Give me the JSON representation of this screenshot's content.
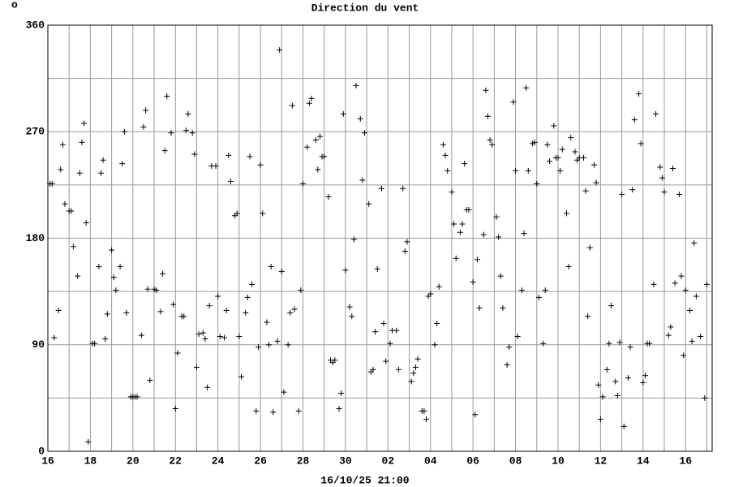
{
  "chart_data": {
    "type": "scatter",
    "corner_mark": "o",
    "title": "Direction du vent",
    "xlabel": "16/10/25 21:00",
    "marker": "+",
    "color": "#000000",
    "grid": true,
    "xlim": [
      0,
      31.25
    ],
    "ylim": [
      0,
      360
    ],
    "yticks": [
      0,
      90,
      180,
      270,
      360
    ],
    "yminorticks": [
      45,
      135,
      225,
      315
    ],
    "xticks": [
      {
        "value": 0,
        "label": "16"
      },
      {
        "value": 2,
        "label": "18"
      },
      {
        "value": 4,
        "label": "20"
      },
      {
        "value": 6,
        "label": "22"
      },
      {
        "value": 8,
        "label": "24"
      },
      {
        "value": 10,
        "label": "26"
      },
      {
        "value": 12,
        "label": "28"
      },
      {
        "value": 14,
        "label": "30"
      },
      {
        "value": 16,
        "label": "02"
      },
      {
        "value": 18,
        "label": "04"
      },
      {
        "value": 20,
        "label": "06"
      },
      {
        "value": 22,
        "label": "08"
      },
      {
        "value": 24,
        "label": "10"
      },
      {
        "value": 26,
        "label": "12"
      },
      {
        "value": 28,
        "label": "14"
      },
      {
        "value": 30,
        "label": "16"
      }
    ],
    "xminorticks": [
      1,
      3,
      5,
      7,
      9,
      11,
      13,
      15,
      17,
      19,
      21,
      23,
      25,
      27,
      29,
      31
    ],
    "x": [
      0.1,
      0.2,
      0.3,
      0.5,
      0.6,
      0.7,
      0.8,
      1.0,
      1.1,
      1.2,
      1.4,
      1.5,
      1.6,
      1.7,
      1.8,
      1.9,
      2.1,
      2.2,
      2.4,
      2.5,
      2.6,
      2.7,
      2.8,
      3.0,
      3.1,
      3.2,
      3.4,
      3.5,
      3.6,
      3.7,
      3.9,
      4.0,
      4.1,
      4.2,
      4.4,
      4.5,
      4.6,
      4.7,
      4.8,
      5.0,
      5.1,
      5.3,
      5.4,
      5.5,
      5.6,
      5.8,
      5.9,
      6.0,
      6.1,
      6.3,
      6.4,
      6.5,
      6.6,
      6.8,
      6.9,
      7.0,
      7.1,
      7.3,
      7.4,
      7.5,
      7.6,
      7.7,
      7.9,
      8.0,
      8.1,
      8.3,
      8.4,
      8.5,
      8.6,
      8.8,
      8.9,
      9.0,
      9.1,
      9.3,
      9.4,
      9.5,
      9.6,
      9.8,
      9.9,
      10.0,
      10.1,
      10.3,
      10.4,
      10.5,
      10.6,
      10.8,
      10.9,
      11.0,
      11.1,
      11.3,
      11.4,
      11.5,
      11.6,
      11.8,
      11.9,
      12.0,
      12.2,
      12.3,
      12.4,
      12.6,
      12.7,
      12.8,
      12.9,
      13.0,
      13.2,
      13.3,
      13.4,
      13.5,
      13.7,
      13.8,
      13.9,
      14.0,
      14.2,
      14.3,
      14.4,
      14.5,
      14.7,
      14.8,
      14.9,
      15.1,
      15.2,
      15.3,
      15.4,
      15.5,
      15.7,
      15.8,
      15.9,
      16.1,
      16.2,
      16.4,
      16.5,
      16.7,
      16.8,
      16.9,
      17.1,
      17.2,
      17.3,
      17.4,
      17.6,
      17.7,
      17.8,
      17.9,
      18.0,
      18.2,
      18.3,
      18.4,
      18.6,
      18.7,
      18.8,
      19.0,
      19.1,
      19.2,
      19.4,
      19.5,
      19.6,
      19.7,
      19.8,
      20.0,
      20.1,
      20.2,
      20.3,
      20.5,
      20.6,
      20.7,
      20.8,
      20.9,
      21.1,
      21.2,
      21.3,
      21.4,
      21.6,
      21.7,
      21.9,
      22.0,
      22.1,
      22.3,
      22.4,
      22.5,
      22.6,
      22.8,
      22.9,
      23.0,
      23.1,
      23.3,
      23.4,
      23.5,
      23.6,
      23.8,
      23.9,
      24.0,
      24.1,
      24.2,
      24.4,
      24.5,
      24.6,
      24.8,
      24.9,
      25.0,
      25.2,
      25.3,
      25.4,
      25.5,
      25.7,
      25.8,
      25.9,
      26.0,
      26.1,
      26.3,
      26.4,
      26.5,
      26.7,
      26.8,
      26.9,
      27.0,
      27.1,
      27.3,
      27.4,
      27.5,
      27.6,
      27.8,
      27.9,
      28.0,
      28.1,
      28.2,
      28.3,
      28.5,
      28.6,
      28.8,
      28.9,
      29.0,
      29.2,
      29.3,
      29.4,
      29.5,
      29.7,
      29.8,
      29.9,
      30.0,
      30.2,
      30.3,
      30.4,
      30.5,
      30.7,
      30.9,
      31.0
    ],
    "values": [
      226,
      226,
      96,
      119,
      238,
      259,
      209,
      203,
      203,
      173,
      148,
      235,
      261,
      277,
      193,
      8,
      91,
      91,
      156,
      235,
      246,
      95,
      116,
      170,
      147,
      136,
      156,
      243,
      270,
      117,
      46,
      46,
      46,
      46,
      98,
      274,
      288,
      137,
      60,
      137,
      136,
      118,
      150,
      254,
      300,
      269,
      124,
      36,
      83,
      114,
      114,
      271,
      285,
      269,
      251,
      71,
      99,
      100,
      95,
      54,
      123,
      241,
      241,
      131,
      97,
      96,
      119,
      250,
      228,
      199,
      201,
      97,
      63,
      117,
      130,
      249,
      141,
      34,
      88,
      242,
      201,
      109,
      90,
      156,
      33,
      93,
      339,
      152,
      50,
      90,
      117,
      292,
      120,
      34,
      136,
      226,
      257,
      294,
      298,
      263,
      238,
      266,
      249,
      249,
      215,
      77,
      75,
      77,
      36,
      49,
      285,
      153,
      122,
      114,
      179,
      309,
      281,
      229,
      269,
      209,
      67,
      69,
      101,
      154,
      222,
      108,
      76,
      91,
      102,
      102,
      69,
      222,
      169,
      177,
      59,
      66,
      71,
      78,
      34,
      34,
      27,
      131,
      133,
      90,
      108,
      139,
      259,
      250,
      237,
      219,
      192,
      163,
      185,
      192,
      243,
      204,
      204,
      143,
      31,
      162,
      121,
      183,
      305,
      283,
      263,
      259,
      198,
      181,
      148,
      121,
      73,
      88,
      295,
      237,
      97,
      136,
      184,
      307,
      237,
      260,
      261,
      226,
      130,
      91,
      136,
      259,
      245,
      275,
      248,
      248,
      237,
      255,
      201,
      156,
      265,
      253,
      246,
      248,
      248,
      220,
      114,
      172,
      242,
      227,
      56,
      27,
      46,
      69,
      91,
      123,
      59,
      47,
      92,
      217,
      21,
      62,
      88,
      221,
      280,
      302,
      260,
      58,
      64,
      91,
      91,
      141,
      285,
      240,
      231,
      219,
      98,
      105,
      239,
      142,
      217,
      148,
      81,
      136,
      119,
      93,
      176,
      131,
      97,
      45,
      141
    ]
  }
}
